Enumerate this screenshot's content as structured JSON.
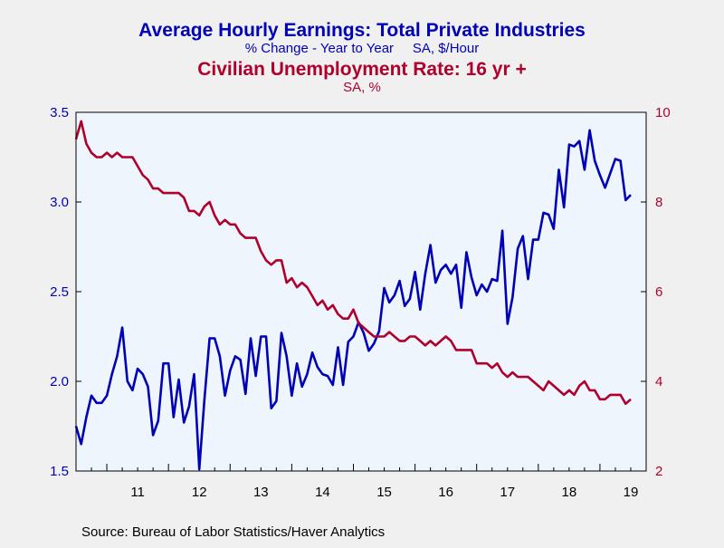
{
  "colors": {
    "background": "#f0f0f0",
    "plot_background": "#eef5fc",
    "earnings": "#0000b8",
    "unemployment": "#b0002c",
    "axis": "#000000",
    "text": "#000000"
  },
  "chart_data": {
    "type": "line",
    "title": "Average Hourly Earnings: Total Private Industries",
    "subtitle": "% Change - Year to Year     SA, $/Hour",
    "title2": "Civilian Unemployment Rate: 16 yr +",
    "subtitle2": "SA, %",
    "source": "Source:  Bureau of Labor Statistics/Haver Analytics",
    "x_range": [
      2010.5,
      2019.75
    ],
    "x_tick_labels": [
      "11",
      "12",
      "13",
      "14",
      "15",
      "16",
      "17",
      "18",
      "19"
    ],
    "x_tick_positions": [
      2011.5,
      2012.5,
      2013.5,
      2014.5,
      2015.5,
      2016.5,
      2017.5,
      2018.5,
      2019.5
    ],
    "left_axis": {
      "ylim": [
        1.5,
        3.5
      ],
      "ticks": [
        "1.5",
        "2.0",
        "2.5",
        "3.0",
        "3.5"
      ]
    },
    "right_axis": {
      "ylim": [
        2,
        10
      ],
      "ticks": [
        "2",
        "4",
        "6",
        "8",
        "10"
      ]
    },
    "series": [
      {
        "name": "Average Hourly Earnings: Total Private Industries",
        "axis": "left",
        "x_start": 2010.5,
        "x_step": 0.0833333,
        "values": [
          1.75,
          1.65,
          1.8,
          1.92,
          1.88,
          1.88,
          1.92,
          2.04,
          2.14,
          2.3,
          2.0,
          1.95,
          2.07,
          2.04,
          1.97,
          1.7,
          1.78,
          2.1,
          2.1,
          1.8,
          2.01,
          1.77,
          1.86,
          2.04,
          1.51,
          1.9,
          2.24,
          2.24,
          2.14,
          1.92,
          2.06,
          2.14,
          2.12,
          1.93,
          2.24,
          2.03,
          2.25,
          2.25,
          1.85,
          1.89,
          2.27,
          2.14,
          1.92,
          2.1,
          1.97,
          2.04,
          2.16,
          2.08,
          2.04,
          2.03,
          1.98,
          2.19,
          1.98,
          2.22,
          2.25,
          2.33,
          2.27,
          2.17,
          2.21,
          2.28,
          2.52,
          2.44,
          2.48,
          2.56,
          2.42,
          2.46,
          2.61,
          2.4,
          2.6,
          2.76,
          2.55,
          2.62,
          2.65,
          2.6,
          2.65,
          2.41,
          2.72,
          2.58,
          2.48,
          2.54,
          2.5,
          2.57,
          2.56,
          2.84,
          2.32,
          2.47,
          2.74,
          2.81,
          2.57,
          2.79,
          2.79,
          2.94,
          2.93,
          2.85,
          3.18,
          2.97,
          3.32,
          3.31,
          3.34,
          3.18,
          3.4,
          3.23,
          3.15,
          3.08,
          3.16,
          3.24,
          3.23,
          3.01,
          3.04
        ]
      },
      {
        "name": "Civilian Unemployment Rate: 16 yr +",
        "axis": "right",
        "x_start": 2010.5,
        "x_step": 0.0833333,
        "values": [
          9.4,
          9.8,
          9.3,
          9.1,
          9.0,
          9.0,
          9.1,
          9.0,
          9.1,
          9.0,
          9.0,
          9.0,
          8.8,
          8.6,
          8.5,
          8.3,
          8.3,
          8.2,
          8.2,
          8.2,
          8.2,
          8.1,
          7.8,
          7.8,
          7.7,
          7.9,
          8.0,
          7.7,
          7.5,
          7.6,
          7.5,
          7.5,
          7.3,
          7.2,
          7.2,
          7.2,
          6.9,
          6.7,
          6.6,
          6.7,
          6.7,
          6.2,
          6.3,
          6.1,
          6.2,
          6.1,
          5.9,
          5.7,
          5.8,
          5.6,
          5.7,
          5.5,
          5.4,
          5.4,
          5.6,
          5.3,
          5.2,
          5.1,
          5.0,
          5.0,
          5.0,
          5.1,
          5.0,
          4.9,
          4.9,
          5.0,
          5.0,
          4.9,
          4.8,
          4.9,
          4.8,
          4.9,
          5.0,
          4.9,
          4.7,
          4.7,
          4.7,
          4.7,
          4.4,
          4.4,
          4.4,
          4.3,
          4.4,
          4.2,
          4.1,
          4.2,
          4.1,
          4.1,
          4.1,
          4.0,
          3.9,
          3.8,
          4.0,
          3.9,
          3.8,
          3.7,
          3.8,
          3.7,
          3.9,
          4.0,
          3.8,
          3.8,
          3.6,
          3.6,
          3.7,
          3.7,
          3.7,
          3.5,
          3.6
        ]
      }
    ],
    "grid": false,
    "legend": "none"
  }
}
